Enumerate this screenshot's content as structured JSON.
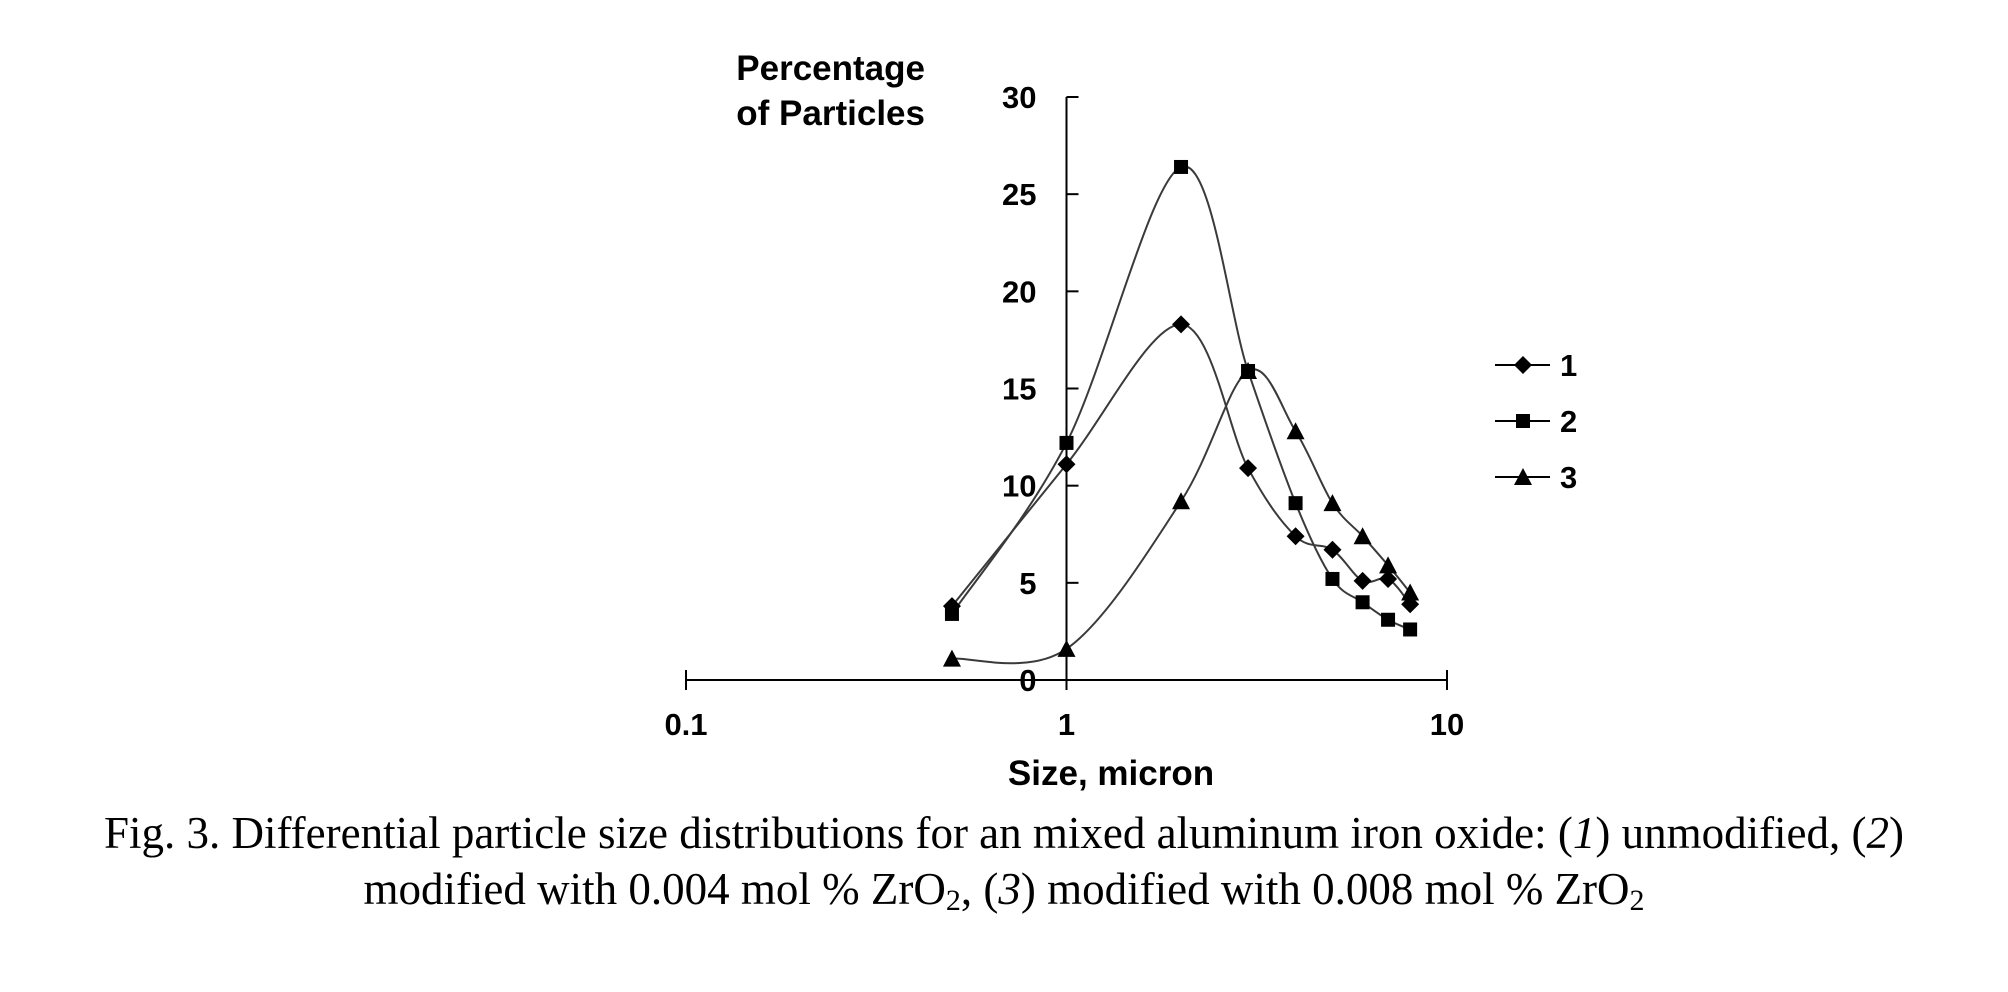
{
  "chart_data": {
    "type": "line",
    "x_scale": "log",
    "xlim": [
      0.1,
      10
    ],
    "ylim": [
      0,
      30
    ],
    "xticks": [
      "0.1",
      "1",
      "10"
    ],
    "yticks": [
      "0",
      "5",
      "10",
      "15",
      "20",
      "25",
      "30"
    ],
    "xlabel": "Size, micron",
    "ylabel": [
      "Percentage",
      "of Particles"
    ],
    "legend_position": "right",
    "grid": false,
    "series": [
      {
        "name": "1",
        "marker": "diamond",
        "points": [
          [
            0.5,
            3.8
          ],
          [
            1,
            11.1
          ],
          [
            2,
            18.3
          ],
          [
            3,
            10.9
          ],
          [
            4,
            7.4
          ],
          [
            5,
            6.7
          ],
          [
            6,
            5.1
          ],
          [
            7,
            5.2
          ],
          [
            8,
            3.9
          ]
        ]
      },
      {
        "name": "2",
        "marker": "square",
        "points": [
          [
            0.5,
            3.4
          ],
          [
            1,
            12.2
          ],
          [
            2,
            26.4
          ],
          [
            3,
            15.9
          ],
          [
            4,
            9.1
          ],
          [
            5,
            5.2
          ],
          [
            6,
            4.0
          ],
          [
            7,
            3.1
          ],
          [
            8,
            2.6
          ]
        ]
      },
      {
        "name": "3",
        "marker": "triangle",
        "points": [
          [
            0.5,
            1.1
          ],
          [
            1,
            1.6
          ],
          [
            2,
            9.2
          ],
          [
            3,
            15.9
          ],
          [
            4,
            12.8
          ],
          [
            5,
            9.1
          ],
          [
            6,
            7.4
          ],
          [
            7,
            5.9
          ],
          [
            8,
            4.5
          ]
        ]
      }
    ]
  },
  "caption": {
    "line1_a": "Fig. 3. Differential particle size distributions for an mixed aluminum iron oxide: (",
    "n1": "1",
    "line1_b": ") unmodified, (",
    "n2": "2",
    "line1_c": ")",
    "line2_a": "modified with 0.004 mol % ZrO",
    "sub1": "2",
    "line2_b": ", (",
    "n3": "3",
    "line2_c": ") modified with 0.008 mol % ZrO",
    "sub2": "2"
  }
}
